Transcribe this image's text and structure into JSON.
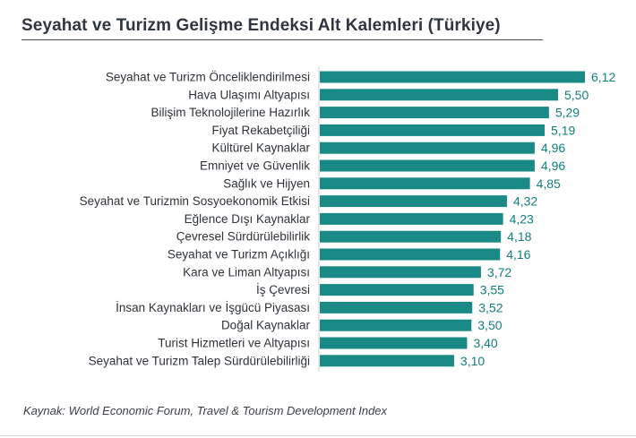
{
  "page": {
    "title": "Seyahat ve Turizm Gelişme Endeksi Alt Kalemleri (Türkiye)",
    "source": "Kaynak: World Economic Forum, Travel & Tourism Development Index"
  },
  "colors": {
    "bar": "#1a8a86",
    "value_text": "#137f7b",
    "category_text": "#2e333a",
    "axis": "#c9cdd1"
  },
  "chart_data": {
    "type": "bar",
    "orientation": "horizontal",
    "title": "Seyahat ve Turizm Gelişme Endeksi Alt Kalemleri (Türkiye)",
    "categories": [
      "Seyahat ve Turizm Önceliklendirilmesi",
      "Hava Ulaşımı Altyapısı",
      "Bilişim Teknolojilerine Hazırlık",
      "Fiyat Rekabetçiliği",
      "Kültürel Kaynaklar",
      "Emniyet ve Güvenlik",
      "Sağlık ve Hijyen",
      "Seyahat ve Turizmin Sosyoekonomik Etkisi",
      "Eğlence Dışı Kaynaklar",
      "Çevresel Sürdürülebilirlik",
      "Seyahat ve Turizm Açıklığı",
      "Kara ve Liman Altyapısı",
      "İş Çevresi",
      "İnsan Kaynakları ve İşgücü Piyasası",
      "Doğal Kaynaklar",
      "Turist Hizmetleri ve Altyapısı",
      "Seyahat ve Turizm Talep Sürdürülebilirliği"
    ],
    "values": [
      6.12,
      5.5,
      5.29,
      5.19,
      4.96,
      4.96,
      4.85,
      4.32,
      4.23,
      4.18,
      4.16,
      3.72,
      3.55,
      3.52,
      3.5,
      3.4,
      3.1
    ],
    "value_labels": [
      "6,12",
      "5,50",
      "5,29",
      "5,19",
      "4,96",
      "4,96",
      "4,85",
      "4,32",
      "4,23",
      "4,18",
      "4,16",
      "3,72",
      "3,55",
      "3,52",
      "3,50",
      "3,40",
      "3,10"
    ],
    "xlim": [
      0,
      6.12
    ],
    "grid": false,
    "legend": "none",
    "xlabel": "",
    "ylabel": ""
  }
}
